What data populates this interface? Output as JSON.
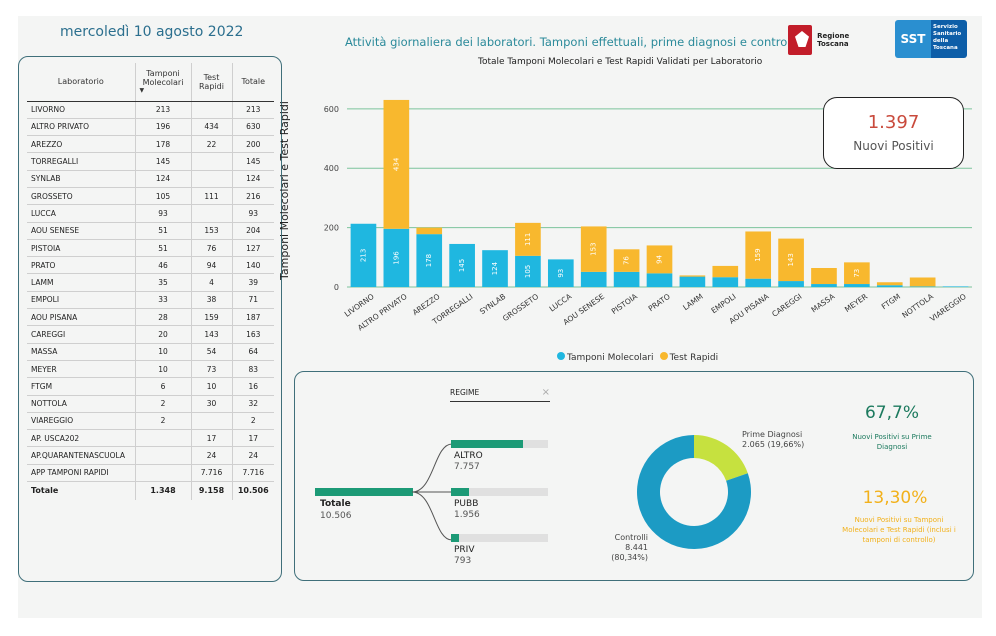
{
  "header": {
    "date": "mercoledì 10 agosto 2022",
    "headline": "Attività giornaliera dei laboratori. Tamponi effettuali, prime diagnosi e controlli",
    "logo_rt": "Regione Toscana",
    "logo_sst_mark": "SST",
    "logo_sst_text": "Servizio Sanitario della Toscana"
  },
  "table": {
    "headers": [
      "Laboratorio",
      "Tamponi Molecolari",
      "Test Rapidi",
      "Totale"
    ],
    "rows": [
      [
        "LIVORNO",
        "213",
        "",
        "213"
      ],
      [
        "ALTRO PRIVATO",
        "196",
        "434",
        "630"
      ],
      [
        "AREZZO",
        "178",
        "22",
        "200"
      ],
      [
        "TORREGALLI",
        "145",
        "",
        "145"
      ],
      [
        "SYNLAB",
        "124",
        "",
        "124"
      ],
      [
        "GROSSETO",
        "105",
        "111",
        "216"
      ],
      [
        "LUCCA",
        "93",
        "",
        "93"
      ],
      [
        "AOU SENESE",
        "51",
        "153",
        "204"
      ],
      [
        "PISTOIA",
        "51",
        "76",
        "127"
      ],
      [
        "PRATO",
        "46",
        "94",
        "140"
      ],
      [
        "LAMM",
        "35",
        "4",
        "39"
      ],
      [
        "EMPOLI",
        "33",
        "38",
        "71"
      ],
      [
        "AOU PISANA",
        "28",
        "159",
        "187"
      ],
      [
        "CAREGGI",
        "20",
        "143",
        "163"
      ],
      [
        "MASSA",
        "10",
        "54",
        "64"
      ],
      [
        "MEYER",
        "10",
        "73",
        "83"
      ],
      [
        "FTGM",
        "6",
        "10",
        "16"
      ],
      [
        "NOTTOLA",
        "2",
        "30",
        "32"
      ],
      [
        "VIAREGGIO",
        "2",
        "",
        "2"
      ],
      [
        "AP. USCA202",
        "",
        "17",
        "17"
      ],
      [
        "AP.QUARANTENASCUOLA",
        "",
        "24",
        "24"
      ],
      [
        "APP TAMPONI RAPIDI",
        "",
        "7.716",
        "7.716"
      ]
    ],
    "total": [
      "Totale",
      "1.348",
      "9.158",
      "10.506"
    ]
  },
  "chart_data": {
    "type": "bar",
    "title": "Totale Tamponi Molecolari e Test Rapidi Validati per Laboratorio",
    "ylabel": "Tamponi Molecolari e Test Rapidi",
    "xlabel": "",
    "ylim": [
      0,
      650
    ],
    "yticks": [
      0,
      200,
      400,
      600
    ],
    "categories": [
      "LIVORNO",
      "ALTRO PRIVATO",
      "AREZZO",
      "TORREGALLI",
      "SYNLAB",
      "GROSSETO",
      "LUCCA",
      "AOU SENESE",
      "PISTOIA",
      "PRATO",
      "LAMM",
      "EMPOLI",
      "AOU PISANA",
      "CAREGGI",
      "MASSA",
      "MEYER",
      "FTGM",
      "NOTTOLA",
      "VIAREGGIO"
    ],
    "series": [
      {
        "name": "Tamponi Molecolari",
        "color": "#1fb7e0",
        "values": [
          213,
          196,
          178,
          145,
          124,
          105,
          93,
          51,
          51,
          46,
          35,
          33,
          28,
          20,
          10,
          10,
          6,
          2,
          2
        ]
      },
      {
        "name": "Test Rapidi",
        "color": "#f8b82e",
        "values": [
          0,
          434,
          22,
          0,
          0,
          111,
          0,
          153,
          76,
          94,
          4,
          38,
          159,
          143,
          54,
          73,
          10,
          30,
          0
        ]
      }
    ],
    "stacked": true,
    "grid": true,
    "legend": "bottom"
  },
  "kpi": {
    "value": "1.397",
    "label": "Nuovi Positivi"
  },
  "regime": {
    "title": "REGIME",
    "close": "×",
    "root": {
      "label": "Totale",
      "value": "10.506"
    },
    "children": [
      {
        "label": "ALTRO",
        "value": "7.757",
        "fraction": 0.74
      },
      {
        "label": "PUBB",
        "value": "1.956",
        "fraction": 0.19
      },
      {
        "label": "PRIV",
        "value": "793",
        "fraction": 0.08
      }
    ]
  },
  "donut": {
    "segments": [
      {
        "name": "Prime Diagnosi",
        "value": "2.065 (19,66%)",
        "fraction": 0.1966,
        "color": "#c6e13f"
      },
      {
        "name": "Controlli",
        "value": "8.441 (80,34%)",
        "fraction": 0.8034,
        "color": "#1c9bc4"
      }
    ]
  },
  "stats": {
    "pct1": "67,7%",
    "pct1_label": "Nuovi Positivi su Prime Diagnosi",
    "pct2": "13,30%",
    "pct2_label": "Nuovi Positivi su Tamponi Molecolari e Test Rapidi (inclusi i tamponi di controllo)"
  }
}
